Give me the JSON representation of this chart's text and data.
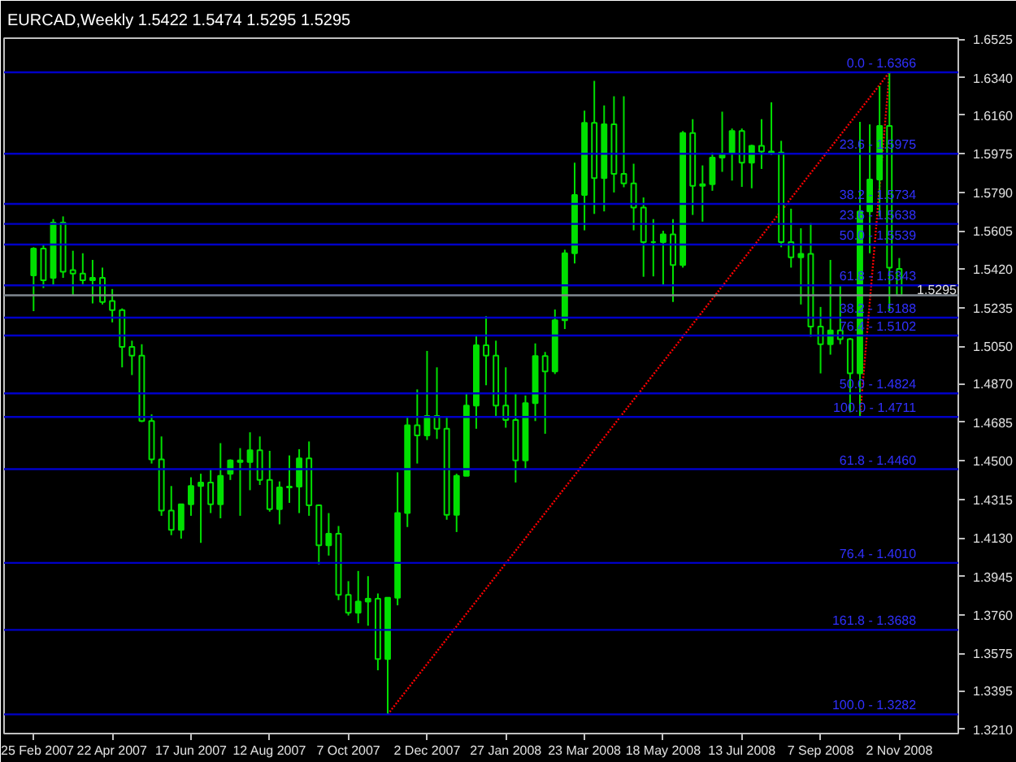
{
  "chart_data": {
    "type": "candlestick",
    "title": "EURCAD,Weekly  1.5422 1.5474 1.5295 1.5295",
    "color": "#00e000",
    "x": [
      "2007-02-25",
      "2007-03-04",
      "2007-03-11",
      "2007-03-18",
      "2007-03-25",
      "2007-04-01",
      "2007-04-08",
      "2007-04-15",
      "2007-04-22",
      "2007-04-29",
      "2007-05-06",
      "2007-05-13",
      "2007-05-20",
      "2007-05-27",
      "2007-06-03",
      "2007-06-10",
      "2007-06-17",
      "2007-06-24",
      "2007-07-01",
      "2007-07-08",
      "2007-07-15",
      "2007-07-22",
      "2007-07-29",
      "2007-08-05",
      "2007-08-12",
      "2007-08-19",
      "2007-08-26",
      "2007-09-02",
      "2007-09-09",
      "2007-09-16",
      "2007-09-23",
      "2007-09-30",
      "2007-10-07",
      "2007-10-14",
      "2007-10-21",
      "2007-10-28",
      "2007-11-04",
      "2007-11-11",
      "2007-11-18",
      "2007-11-25",
      "2007-12-02",
      "2007-12-09",
      "2007-12-16",
      "2007-12-23",
      "2007-12-30",
      "2008-01-06",
      "2008-01-13",
      "2008-01-20",
      "2008-01-27",
      "2008-02-03",
      "2008-02-10",
      "2008-02-17",
      "2008-02-24",
      "2008-03-02",
      "2008-03-09",
      "2008-03-16",
      "2008-03-23",
      "2008-03-30",
      "2008-04-06",
      "2008-04-13",
      "2008-04-20",
      "2008-04-27",
      "2008-05-04",
      "2008-05-11",
      "2008-05-18",
      "2008-05-25",
      "2008-06-01",
      "2008-06-08",
      "2008-06-15",
      "2008-06-22",
      "2008-06-29",
      "2008-07-06",
      "2008-07-13",
      "2008-07-20",
      "2008-07-27",
      "2008-08-03",
      "2008-08-10",
      "2008-08-17",
      "2008-08-24",
      "2008-08-31",
      "2008-09-07",
      "2008-09-14",
      "2008-09-21",
      "2008-09-28",
      "2008-10-05",
      "2008-10-12",
      "2008-10-19",
      "2008-10-26",
      "2008-11-02"
    ],
    "ohlc": [
      [
        1.5391,
        1.5526,
        1.5219,
        1.5519
      ],
      [
        1.5519,
        1.5539,
        1.533,
        1.5367
      ],
      [
        1.5379,
        1.5661,
        1.5342,
        1.5644
      ],
      [
        1.5644,
        1.5674,
        1.5379,
        1.5408
      ],
      [
        1.5416,
        1.5509,
        1.5293,
        1.5399
      ],
      [
        1.5399,
        1.5497,
        1.5349,
        1.5367
      ],
      [
        1.5367,
        1.5465,
        1.5256,
        1.5379
      ],
      [
        1.5379,
        1.5428,
        1.5251,
        1.5263
      ],
      [
        1.5268,
        1.5325,
        1.5165,
        1.5224
      ],
      [
        1.5224,
        1.5232,
        1.4949,
        1.5047
      ],
      [
        1.5047,
        1.5077,
        1.4912,
        1.5005
      ],
      [
        1.5005,
        1.506,
        1.4686,
        1.4691
      ],
      [
        1.4691,
        1.4723,
        1.4487,
        1.4507
      ],
      [
        1.4507,
        1.4617,
        1.4236,
        1.4261
      ],
      [
        1.4261,
        1.4379,
        1.4143,
        1.4168
      ],
      [
        1.4168,
        1.4293,
        1.4126,
        1.4291
      ],
      [
        1.4291,
        1.4421,
        1.4236,
        1.4379
      ],
      [
        1.4379,
        1.4438,
        1.4106,
        1.4396
      ],
      [
        1.4396,
        1.4458,
        1.4249,
        1.4291
      ],
      [
        1.4291,
        1.4585,
        1.4224,
        1.4428
      ],
      [
        1.4438,
        1.4507,
        1.4408,
        1.4502
      ],
      [
        1.4502,
        1.4561,
        1.4236,
        1.4494
      ],
      [
        1.4494,
        1.4637,
        1.4359,
        1.4551
      ],
      [
        1.4551,
        1.4617,
        1.4384,
        1.4408
      ],
      [
        1.4408,
        1.4548,
        1.4256,
        1.4268
      ],
      [
        1.4268,
        1.4401,
        1.4195,
        1.4372
      ],
      [
        1.4372,
        1.4526,
        1.4298,
        1.4376
      ],
      [
        1.4376,
        1.4556,
        1.4249,
        1.4512
      ],
      [
        1.4512,
        1.4593,
        1.4236,
        1.4286
      ],
      [
        1.4286,
        1.4291,
        1.4003,
        1.4094
      ],
      [
        1.4094,
        1.4249,
        1.4045,
        1.415
      ],
      [
        1.415,
        1.4187,
        1.3831,
        1.3856
      ],
      [
        1.3856,
        1.3922,
        1.3757,
        1.377
      ],
      [
        1.377,
        1.3971,
        1.372,
        1.3824
      ],
      [
        1.3824,
        1.3946,
        1.3708,
        1.3838
      ],
      [
        1.3838,
        1.3863,
        1.3494,
        1.3548
      ],
      [
        1.3548,
        1.3843,
        1.3282,
        1.3843
      ],
      [
        1.3843,
        1.4445,
        1.3806,
        1.4249
      ],
      [
        1.4249,
        1.4708,
        1.4182,
        1.4671
      ],
      [
        1.4671,
        1.4843,
        1.4487,
        1.4622
      ],
      [
        1.4622,
        1.5028,
        1.46,
        1.4716
      ],
      [
        1.4716,
        1.4949,
        1.4605,
        1.4654
      ],
      [
        1.4654,
        1.4708,
        1.4217,
        1.4241
      ],
      [
        1.4241,
        1.4438,
        1.4158,
        1.4428
      ],
      [
        1.4428,
        1.4821,
        1.4428,
        1.4765
      ],
      [
        1.4765,
        1.5106,
        1.4654,
        1.5055
      ],
      [
        1.5055,
        1.5195,
        1.4863,
        1.5005
      ],
      [
        1.5005,
        1.5077,
        1.4716,
        1.4765
      ],
      [
        1.4765,
        1.4949,
        1.4659,
        1.4696
      ],
      [
        1.4696,
        1.4826,
        1.4396,
        1.4502
      ],
      [
        1.4502,
        1.4814,
        1.4462,
        1.4777
      ],
      [
        1.4777,
        1.5064,
        1.4691,
        1.5003
      ],
      [
        1.5003,
        1.5023,
        1.463,
        1.4929
      ],
      [
        1.4929,
        1.5227,
        1.4917,
        1.5175
      ],
      [
        1.5175,
        1.5514,
        1.5133,
        1.5497
      ],
      [
        1.5497,
        1.5932,
        1.5448,
        1.5777
      ],
      [
        1.5777,
        1.6182,
        1.5607,
        1.6123
      ],
      [
        1.6123,
        1.6325,
        1.5686,
        1.5858
      ],
      [
        1.5858,
        1.6207,
        1.5698,
        1.6116
      ],
      [
        1.6116,
        1.6251,
        1.5789,
        1.5878
      ],
      [
        1.5878,
        1.6251,
        1.5814,
        1.5833
      ],
      [
        1.5833,
        1.5927,
        1.5607,
        1.5716
      ],
      [
        1.5716,
        1.5765,
        1.5384,
        1.5551
      ],
      [
        1.5551,
        1.5661,
        1.5386,
        1.5551
      ],
      [
        1.5551,
        1.5605,
        1.5347,
        1.5588
      ],
      [
        1.5588,
        1.5661,
        1.5263,
        1.544
      ],
      [
        1.544,
        1.6084,
        1.5428,
        1.6074
      ],
      [
        1.6074,
        1.6141,
        1.5681,
        1.5821
      ],
      [
        1.5821,
        1.5919,
        1.5649,
        1.5829
      ],
      [
        1.5829,
        1.5981,
        1.5797,
        1.5956
      ],
      [
        1.5956,
        1.6177,
        1.5888,
        1.5976
      ],
      [
        1.5976,
        1.6096,
        1.5846,
        1.6084
      ],
      [
        1.6084,
        1.6096,
        1.5816,
        1.5932
      ],
      [
        1.5932,
        1.6018,
        1.5809,
        1.6013
      ],
      [
        1.6013,
        1.6141,
        1.5902,
        1.5986
      ],
      [
        1.5986,
        1.6222,
        1.5969,
        1.5981
      ],
      [
        1.5981,
        1.6037,
        1.5526,
        1.5551
      ],
      [
        1.5551,
        1.5711,
        1.5428,
        1.5477
      ],
      [
        1.5477,
        1.5617,
        1.5251,
        1.5494
      ],
      [
        1.5494,
        1.5642,
        1.5096,
        1.5145
      ],
      [
        1.5145,
        1.5239,
        1.492,
        1.506
      ],
      [
        1.506,
        1.5465,
        1.501,
        1.5126
      ],
      [
        1.5126,
        1.5347,
        1.506,
        1.5084
      ],
      [
        1.5084,
        1.509,
        1.4733,
        1.492
      ],
      [
        1.492,
        1.6128,
        1.4711,
        1.5698
      ],
      [
        1.5698,
        1.6116,
        1.5497,
        1.5851
      ],
      [
        1.5851,
        1.63,
        1.5674,
        1.6109
      ],
      [
        1.6109,
        1.6366,
        1.5219,
        1.5428
      ],
      [
        1.5422,
        1.5474,
        1.5295,
        1.5295
      ]
    ],
    "series": [
      {
        "type": "line",
        "x": [
          "2007-11-04",
          "2008-10-26"
        ],
        "values": [
          1.3282,
          1.6366
        ],
        "color": "#ff0000",
        "line_style": "dotted"
      },
      {
        "type": "line",
        "x": [
          "2008-10-05",
          "2008-10-26"
        ],
        "values": [
          1.4711,
          1.6366
        ],
        "color": "#ff0000",
        "line_style": "dotted"
      }
    ],
    "ref_lines": [
      {
        "axis": "y",
        "value": 1.6366,
        "color": "#0000c8"
      },
      {
        "axis": "y",
        "value": 1.5975,
        "color": "#0000c8"
      },
      {
        "axis": "y",
        "value": 1.5734,
        "color": "#0000c8"
      },
      {
        "axis": "y",
        "value": 1.5638,
        "color": "#0000c8"
      },
      {
        "axis": "y",
        "value": 1.5539,
        "color": "#0000c8"
      },
      {
        "axis": "y",
        "value": 1.5343,
        "color": "#0000c8"
      },
      {
        "axis": "y",
        "value": 1.5295,
        "label": "1.5295",
        "color": "#808890"
      },
      {
        "axis": "y",
        "value": 1.5188,
        "color": "#0000c8"
      },
      {
        "axis": "y",
        "value": 1.5102,
        "color": "#0000c8"
      },
      {
        "axis": "y",
        "value": 1.4824,
        "color": "#0000c8"
      },
      {
        "axis": "y",
        "value": 1.4711,
        "color": "#0000c8"
      },
      {
        "axis": "y",
        "value": 1.446,
        "color": "#0000c8"
      },
      {
        "axis": "y",
        "value": 1.401,
        "color": "#0000c8"
      },
      {
        "axis": "y",
        "value": 1.3688,
        "color": "#0000c8"
      },
      {
        "axis": "y",
        "value": 1.3282,
        "color": "#0000c8"
      }
    ],
    "annotations": [
      {
        "text": "0.0 - 1.6366",
        "x": "2008-11-14",
        "y": 1.6366
      },
      {
        "text": "23.6 - 1.5975",
        "x": "2008-11-14",
        "y": 1.5975
      },
      {
        "text": "38.2 - 1.5734",
        "x": "2008-11-14",
        "y": 1.5734
      },
      {
        "text": "23.6 - 1.5638",
        "x": "2008-11-14",
        "y": 1.5638
      },
      {
        "text": "50.0 - 1.5539",
        "x": "2008-11-14",
        "y": 1.5539
      },
      {
        "text": "61.8 - 1.5343",
        "x": "2008-11-14",
        "y": 1.5343
      },
      {
        "text": "38.2 - 1.5188",
        "x": "2008-11-14",
        "y": 1.5188
      },
      {
        "text": "76.4 - 1.5102",
        "x": "2008-11-14",
        "y": 1.5102
      },
      {
        "text": "50.0 - 1.4824",
        "x": "2008-11-14",
        "y": 1.4824
      },
      {
        "text": "100.0 - 1.4711",
        "x": "2008-11-14",
        "y": 1.4711
      },
      {
        "text": "61.8 - 1.4460",
        "x": "2008-11-14",
        "y": 1.446
      },
      {
        "text": "76.4 - 1.4010",
        "x": "2008-11-14",
        "y": 1.401
      },
      {
        "text": "161.8 - 1.3688",
        "x": "2008-11-14",
        "y": 1.3688
      },
      {
        "text": "100.0 - 1.3282",
        "x": "2008-11-14",
        "y": 1.3282
      }
    ],
    "xlim": [
      "2007-02-04",
      "2008-12-14"
    ],
    "xticks": [
      {
        "value": "2007-02-25",
        "label": "25 Feb 2007"
      },
      {
        "value": "2007-04-22",
        "label": "22 Apr 2007"
      },
      {
        "value": "2007-06-17",
        "label": "17 Jun 2007"
      },
      {
        "value": "2007-08-12",
        "label": "12 Aug 2007"
      },
      {
        "value": "2007-10-07",
        "label": "7 Oct 2007"
      },
      {
        "value": "2007-12-02",
        "label": "2 Dec 2007"
      },
      {
        "value": "2008-01-27",
        "label": "27 Jan 2008"
      },
      {
        "value": "2008-03-23",
        "label": "23 Mar 2008"
      },
      {
        "value": "2008-05-18",
        "label": "18 May 2008"
      },
      {
        "value": "2008-07-13",
        "label": "13 Jul 2008"
      },
      {
        "value": "2008-09-07",
        "label": "7 Sep 2008"
      },
      {
        "value": "2008-11-02",
        "label": "2 Nov 2008"
      }
    ],
    "ylim": [
      1.319,
      1.653
    ],
    "yticks": [
      {
        "value": 1.6525,
        "label": "1.6525"
      },
      {
        "value": 1.634,
        "label": "1.6340"
      },
      {
        "value": 1.616,
        "label": "1.6160"
      },
      {
        "value": 1.5975,
        "label": "1.5975"
      },
      {
        "value": 1.579,
        "label": "1.5790"
      },
      {
        "value": 1.5605,
        "label": "1.5605"
      },
      {
        "value": 1.542,
        "label": "1.5420"
      },
      {
        "value": 1.5235,
        "label": "1.5235"
      },
      {
        "value": 1.505,
        "label": "1.5050"
      },
      {
        "value": 1.487,
        "label": "1.4870"
      },
      {
        "value": 1.4685,
        "label": "1.4685"
      },
      {
        "value": 1.45,
        "label": "1.4500"
      },
      {
        "value": 1.4315,
        "label": "1.4315"
      },
      {
        "value": 1.413,
        "label": "1.4130"
      },
      {
        "value": 1.3945,
        "label": "1.3945"
      },
      {
        "value": 1.376,
        "label": "1.3760"
      },
      {
        "value": 1.3575,
        "label": "1.3575"
      },
      {
        "value": 1.3395,
        "label": "1.3395"
      },
      {
        "value": 1.321,
        "label": "1.3210"
      }
    ]
  }
}
